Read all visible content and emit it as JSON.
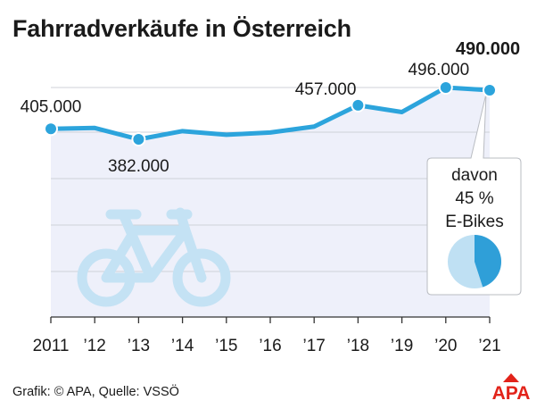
{
  "title": "Fahrradverkäufe in Österreich",
  "source": "Grafik: © APA, Quelle: VSSÖ",
  "logo_text": "APA",
  "colors": {
    "line": "#2ca4dc",
    "area": "#eef0fa",
    "icon": "#c4e2f4",
    "pie_primary": "#2f9fd8",
    "pie_secondary": "#bfe0f3",
    "logo_red": "#e2231a",
    "text": "#1a1a1a"
  },
  "icon": "bicycle-icon",
  "callout": {
    "lines": [
      "davon",
      "45 %",
      "E-Bikes"
    ],
    "pie_share": 0.45
  },
  "chart_data": {
    "type": "line",
    "ylim": [
      300000,
      520000
    ],
    "grid": true,
    "x_tick_labels": [
      "2011",
      "’12",
      "’13",
      "’14",
      "’15",
      "’16",
      "’17",
      "’18",
      "’19",
      "’20",
      "’21"
    ],
    "x": [
      2011,
      2012,
      2013,
      2014,
      2015,
      2016,
      2017,
      2018,
      2019,
      2020,
      2021
    ],
    "series": [
      {
        "values": [
          405000,
          407000,
          382000,
          400000,
          392000,
          397000,
          410000,
          457000,
          442000,
          496000,
          490000
        ]
      }
    ],
    "labeled_points": [
      {
        "x": 2011,
        "label": "405.000",
        "bold": false
      },
      {
        "x": 2013,
        "label": "382.000",
        "bold": false
      },
      {
        "x": 2018,
        "label": "457.000",
        "bold": false
      },
      {
        "x": 2020,
        "label": "496.000",
        "bold": false
      },
      {
        "x": 2021,
        "label": "490.000",
        "bold": true
      }
    ]
  }
}
